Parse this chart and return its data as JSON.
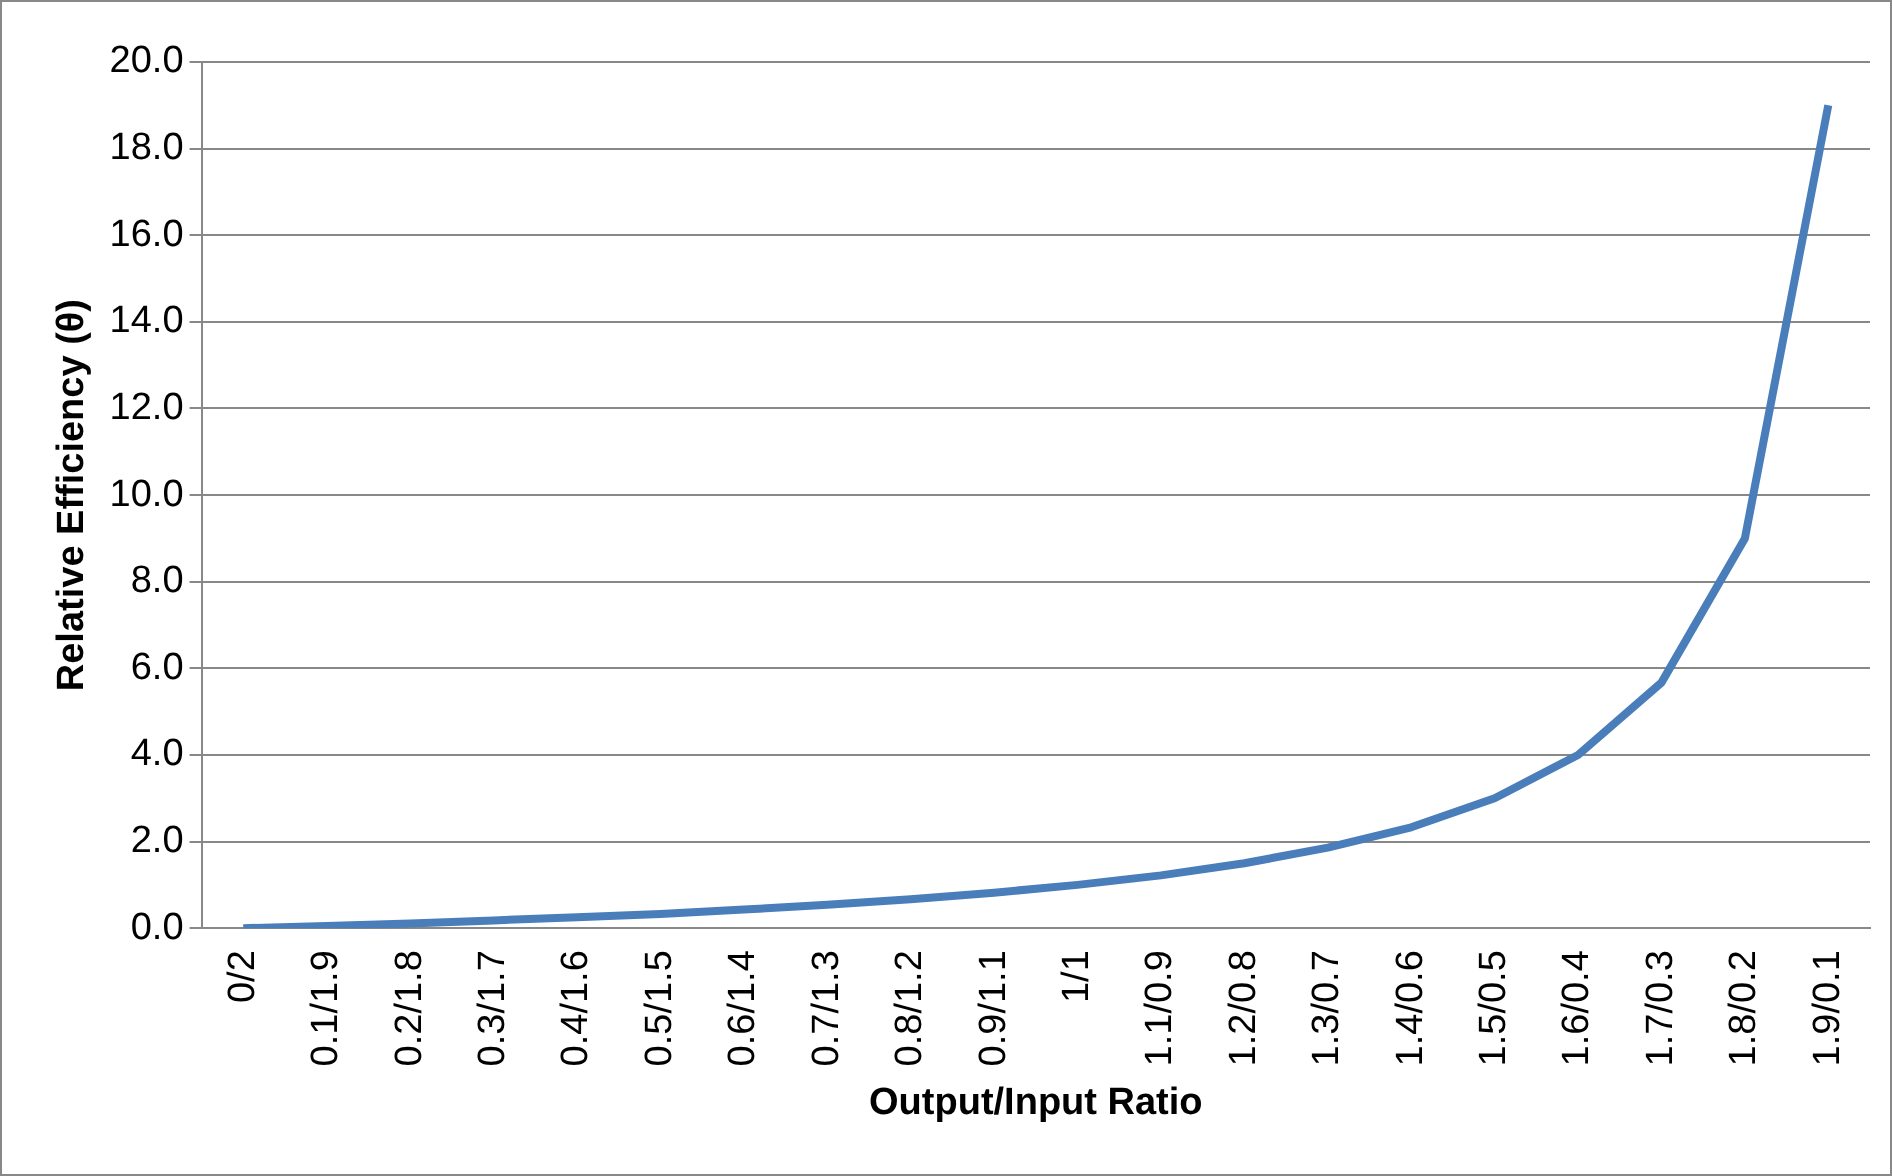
{
  "chart_data": {
    "type": "line",
    "xlabel": "Output/Input Ratio",
    "ylabel": "Relative Efficiency (θ)",
    "categories": [
      "0/2",
      "0.1/1.9",
      "0.2/1.8",
      "0.3/1.7",
      "0.4/1.6",
      "0.5/1.5",
      "0.6/1.4",
      "0.7/1.3",
      "0.8/1.2",
      "0.9/1.1",
      "1/1",
      "1.1/0.9",
      "1.2/0.8",
      "1.3/0.7",
      "1.4/0.6",
      "1.5/0.5",
      "1.6/0.4",
      "1.7/0.3",
      "1.8/0.2",
      "1.9/0.1"
    ],
    "series": [
      {
        "color": "#4a7ebb",
        "values": [
          0,
          0.05,
          0.11,
          0.18,
          0.25,
          0.33,
          0.43,
          0.54,
          0.67,
          0.82,
          1,
          1.22,
          1.5,
          1.86,
          2.33,
          3,
          4,
          5.67,
          9,
          19
        ]
      }
    ],
    "ylim": [
      0,
      20
    ],
    "yticks": [
      {
        "value": 0,
        "label": "0.0"
      },
      {
        "value": 2,
        "label": "2.0"
      },
      {
        "value": 4,
        "label": "4.0"
      },
      {
        "value": 6,
        "label": "6.0"
      },
      {
        "value": 8,
        "label": "8.0"
      },
      {
        "value": 10,
        "label": "10.0"
      },
      {
        "value": 12,
        "label": "12.0"
      },
      {
        "value": 14,
        "label": "14.0"
      },
      {
        "value": 16,
        "label": "16.0"
      },
      {
        "value": 18,
        "label": "18.0"
      },
      {
        "value": 20,
        "label": "20.0"
      }
    ],
    "grid": "y",
    "legend": false,
    "marker": "none",
    "line_style": "solid"
  }
}
